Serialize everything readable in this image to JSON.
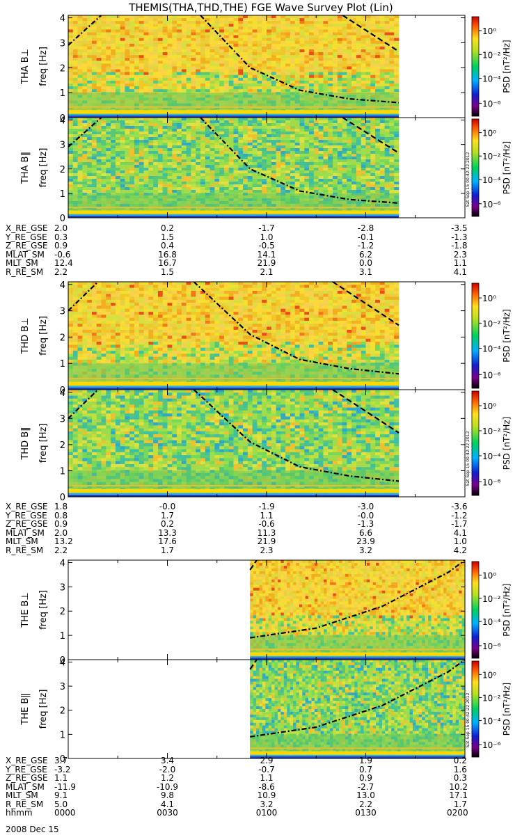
{
  "title": "THEMIS(THA,THD,THE) FGE Wave Survey Plot (Lin)",
  "date_label": "2008 Dec 15",
  "time_label": "hhmm",
  "time_ticks": [
    "0000",
    "0030",
    "0100",
    "0130",
    "0200"
  ],
  "colorbar": {
    "label": "PSD [nT²/Hz]",
    "tick_labels": [
      "10⁰",
      "10⁻²",
      "10⁻⁴",
      "10⁻⁶"
    ],
    "stamp": "Sat Sep 15 00:42:22 2012"
  },
  "ylabel_freq": "freq [Hz]",
  "colors": {
    "low": "#1818a0",
    "mid": "#40c070",
    "high": "#f4d030",
    "peak": "#e82010"
  },
  "chart_data": [
    {
      "type": "heatmap",
      "panel": "THA B⊥",
      "ylabel": "freq [Hz]",
      "ylim": [
        0,
        4.1
      ],
      "yticks": [
        0,
        1,
        2,
        3,
        4
      ],
      "x_range": [
        "0000",
        "0200"
      ],
      "data_extent": [
        "0000",
        "0140"
      ],
      "level": "high",
      "curves": [
        {
          "style": "dash-dot",
          "points": [
            [
              0,
              2.9
            ],
            [
              10,
              4.1
            ]
          ]
        },
        {
          "style": "dash-dot",
          "points": [
            [
              40,
              4.1
            ],
            [
              55,
              2.0
            ],
            [
              70,
              1.1
            ],
            [
              85,
              0.75
            ],
            [
              100,
              0.6
            ]
          ]
        },
        {
          "style": "dashed",
          "points": [
            [
              83,
              4.1
            ],
            [
              100,
              2.65
            ]
          ]
        }
      ]
    },
    {
      "type": "heatmap",
      "panel": "THA B‖",
      "ylabel": "freq [Hz]",
      "ylim": [
        0,
        4.1
      ],
      "yticks": [
        0,
        1,
        2,
        3,
        4
      ],
      "x_range": [
        "0000",
        "0200"
      ],
      "data_extent": [
        "0000",
        "0140"
      ],
      "level": "low",
      "curves": [
        {
          "style": "dash-dot",
          "points": [
            [
              0,
              2.9
            ],
            [
              10,
              4.1
            ]
          ]
        },
        {
          "style": "dash-dot",
          "points": [
            [
              40,
              4.1
            ],
            [
              55,
              2.0
            ],
            [
              70,
              1.1
            ],
            [
              85,
              0.75
            ],
            [
              100,
              0.6
            ]
          ]
        },
        {
          "style": "dashed",
          "points": [
            [
              83,
              4.1
            ],
            [
              100,
              2.65
            ]
          ]
        }
      ]
    },
    {
      "type": "heatmap",
      "panel": "THD B⊥",
      "ylabel": "freq [Hz]",
      "ylim": [
        0,
        4.1
      ],
      "yticks": [
        0,
        1,
        2,
        3,
        4
      ],
      "x_range": [
        "0000",
        "0200"
      ],
      "data_extent": [
        "0000",
        "0140"
      ],
      "level": "high",
      "curves": [
        {
          "style": "dash-dot",
          "points": [
            [
              0,
              3.0
            ],
            [
              9,
              4.1
            ]
          ]
        },
        {
          "style": "dash-dot",
          "points": [
            [
              38,
              4.1
            ],
            [
              55,
              2.1
            ],
            [
              70,
              1.15
            ],
            [
              85,
              0.8
            ],
            [
              100,
              0.6
            ]
          ]
        },
        {
          "style": "dashed",
          "points": [
            [
              80,
              4.1
            ],
            [
              100,
              2.45
            ]
          ]
        }
      ]
    },
    {
      "type": "heatmap",
      "panel": "THD B‖",
      "ylabel": "freq [Hz]",
      "ylim": [
        0,
        4.1
      ],
      "yticks": [
        0,
        1,
        2,
        3,
        4
      ],
      "x_range": [
        "0000",
        "0200"
      ],
      "data_extent": [
        "0000",
        "0140"
      ],
      "level": "low",
      "curves": [
        {
          "style": "dash-dot",
          "points": [
            [
              0,
              3.0
            ],
            [
              9,
              4.1
            ]
          ]
        },
        {
          "style": "dash-dot",
          "points": [
            [
              38,
              4.1
            ],
            [
              55,
              2.1
            ],
            [
              70,
              1.15
            ],
            [
              85,
              0.8
            ],
            [
              100,
              0.6
            ]
          ]
        },
        {
          "style": "dashed",
          "points": [
            [
              80,
              4.1
            ],
            [
              100,
              2.45
            ]
          ]
        }
      ]
    },
    {
      "type": "heatmap",
      "panel": "THE B⊥",
      "ylabel": "freq [Hz]",
      "ylim": [
        0,
        4.1
      ],
      "yticks": [
        0,
        1,
        2,
        3,
        4
      ],
      "x_range": [
        "0000",
        "0200"
      ],
      "data_extent": [
        "0055",
        "0200"
      ],
      "level": "high",
      "curves": [
        {
          "style": "dash-dot",
          "points": [
            [
              55,
              0.9
            ],
            [
              75,
              1.3
            ],
            [
              95,
              2.2
            ],
            [
              115,
              3.6
            ],
            [
              120,
              4.1
            ]
          ]
        },
        {
          "style": "dashed",
          "points": [
            [
              55,
              3.7
            ],
            [
              57,
              4.1
            ]
          ]
        }
      ]
    },
    {
      "type": "heatmap",
      "panel": "THE B‖",
      "ylabel": "freq [Hz]",
      "ylim": [
        0,
        4.1
      ],
      "yticks": [
        0,
        1,
        2,
        3,
        4
      ],
      "x_range": [
        "0000",
        "0200"
      ],
      "data_extent": [
        "0055",
        "0200"
      ],
      "level": "low",
      "curves": [
        {
          "style": "dash-dot",
          "points": [
            [
              55,
              0.9
            ],
            [
              75,
              1.3
            ],
            [
              95,
              2.2
            ],
            [
              115,
              3.6
            ],
            [
              120,
              4.1
            ]
          ]
        },
        {
          "style": "dashed",
          "points": [
            [
              55,
              3.7
            ],
            [
              57,
              4.1
            ]
          ]
        }
      ]
    }
  ],
  "ephemeris": [
    {
      "rows": [
        {
          "label": "X_RE_GSE",
          "values": [
            "2.0",
            "0.2",
            "-1.7",
            "-2.8",
            "-3.5"
          ]
        },
        {
          "label": "Y_RE_GSE",
          "values": [
            "0.3",
            "1.5",
            "1.0",
            "-0.1",
            "-1.3"
          ]
        },
        {
          "label": "Z_RE_GSE",
          "values": [
            "0.9",
            "0.4",
            "-0.5",
            "-1.2",
            "-1.8"
          ]
        },
        {
          "label": "MLAT_SM",
          "values": [
            "-0.6",
            "16.8",
            "14.1",
            "6.2",
            "2.3"
          ]
        },
        {
          "label": "MLT_SM",
          "values": [
            "12.4",
            "16.7",
            "21.9",
            "0.0",
            "1.1"
          ]
        },
        {
          "label": "R_RE_SM",
          "values": [
            "2.2",
            "1.5",
            "2.1",
            "3.1",
            "4.1"
          ]
        }
      ]
    },
    {
      "rows": [
        {
          "label": "X_RE_GSE",
          "values": [
            "1.8",
            "-0.0",
            "-1.9",
            "-3.0",
            "-3.6"
          ]
        },
        {
          "label": "Y_RE_GSE",
          "values": [
            "0.8",
            "1.7",
            "1.1",
            "-0.0",
            "-1.2"
          ]
        },
        {
          "label": "Z_RE_GSE",
          "values": [
            "0.9",
            "0.2",
            "-0.6",
            "-1.3",
            "-1.7"
          ]
        },
        {
          "label": "MLAT_SM",
          "values": [
            "2.0",
            "13.3",
            "11.3",
            "6.6",
            "4.1"
          ]
        },
        {
          "label": "MLT_SM",
          "values": [
            "13.2",
            "17.6",
            "21.9",
            "23.9",
            "1.0"
          ]
        },
        {
          "label": "R_RE_SM",
          "values": [
            "2.2",
            "1.7",
            "2.3",
            "3.2",
            "4.2"
          ]
        }
      ]
    },
    {
      "rows": [
        {
          "label": "X_RE_GSE",
          "values": [
            "3.7",
            "3.4",
            "2.9",
            "1.9",
            "0.2"
          ]
        },
        {
          "label": "Y_RE_GSE",
          "values": [
            "-3.2",
            "-2.0",
            "-0.7",
            "0.7",
            "1.6"
          ]
        },
        {
          "label": "Z_RE_GSE",
          "values": [
            "1.1",
            "1.2",
            "1.1",
            "0.9",
            "0.3"
          ]
        },
        {
          "label": "MLAT_SM",
          "values": [
            "-11.9",
            "-10.9",
            "-8.6",
            "-2.7",
            "10.2"
          ]
        },
        {
          "label": "MLT_SM",
          "values": [
            "9.1",
            "9.8",
            "10.9",
            "13.0",
            "17.1"
          ]
        },
        {
          "label": "R_RE_SM",
          "values": [
            "5.0",
            "4.1",
            "3.2",
            "2.2",
            "1.7"
          ]
        }
      ]
    }
  ]
}
